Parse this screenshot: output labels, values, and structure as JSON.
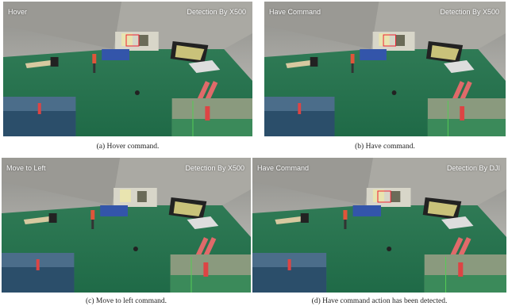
{
  "panels": [
    {
      "label_left": "Hover",
      "label_right": "Detection By X500",
      "caption": "(a) Hover command."
    },
    {
      "label_left": "Have Command",
      "label_right": "Detection By X500",
      "caption": "(b) Have command."
    },
    {
      "label_left": "Move to Left",
      "label_right": "Detection By X500",
      "caption": "(c) Move to left command."
    },
    {
      "label_left": "Have Command",
      "label_right": "Detection By DJI",
      "caption": "(d) Have command action has been detected."
    }
  ]
}
